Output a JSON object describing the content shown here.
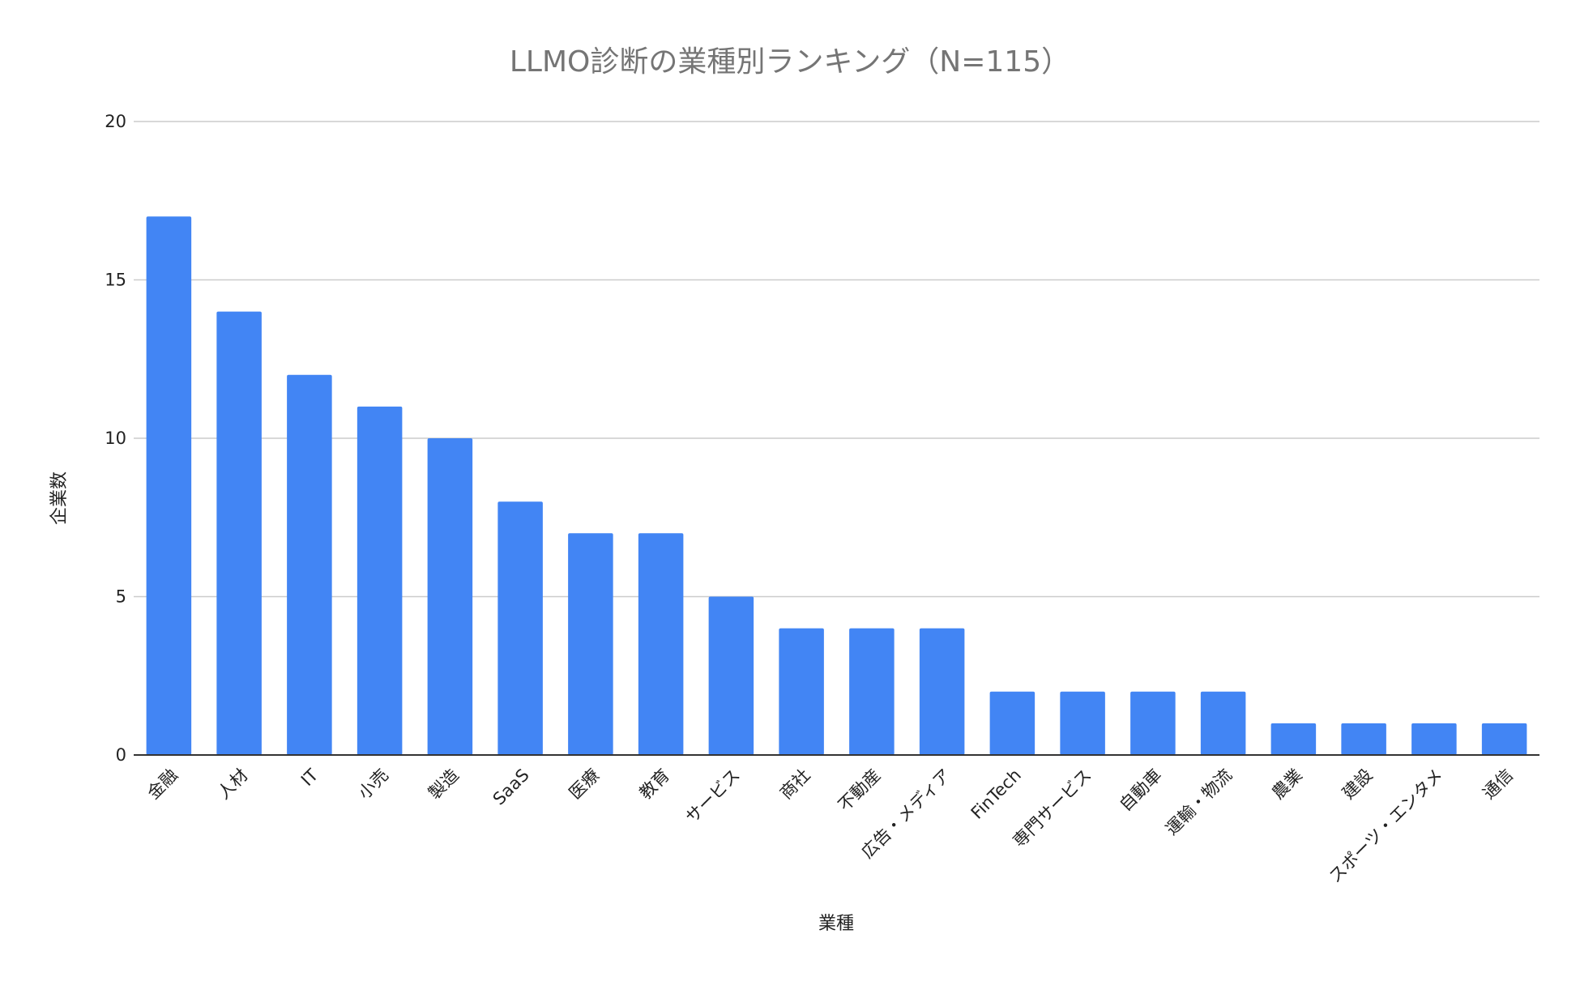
{
  "chart_data": {
    "type": "bar",
    "title": "LLMO診断の業種別ランキング（N=115）",
    "xlabel": "業種",
    "ylabel": "企業数",
    "ylim": [
      0,
      20
    ],
    "yticks": [
      0,
      5,
      10,
      15,
      20
    ],
    "grid": true,
    "bar_color": "#4285f4",
    "categories": [
      "金融",
      "人材",
      "IT",
      "小売",
      "製造",
      "SaaS",
      "医療",
      "教育",
      "サービス",
      "商社",
      "不動産",
      "広告・メディア",
      "FinTech",
      "専門サービス",
      "自動車",
      "運輸・物流",
      "農業",
      "建設",
      "スポーツ・エンタメ",
      "通信"
    ],
    "values": [
      17,
      14,
      12,
      11,
      10,
      8,
      7,
      7,
      5,
      4,
      4,
      4,
      2,
      2,
      2,
      2,
      1,
      1,
      1,
      1
    ]
  }
}
